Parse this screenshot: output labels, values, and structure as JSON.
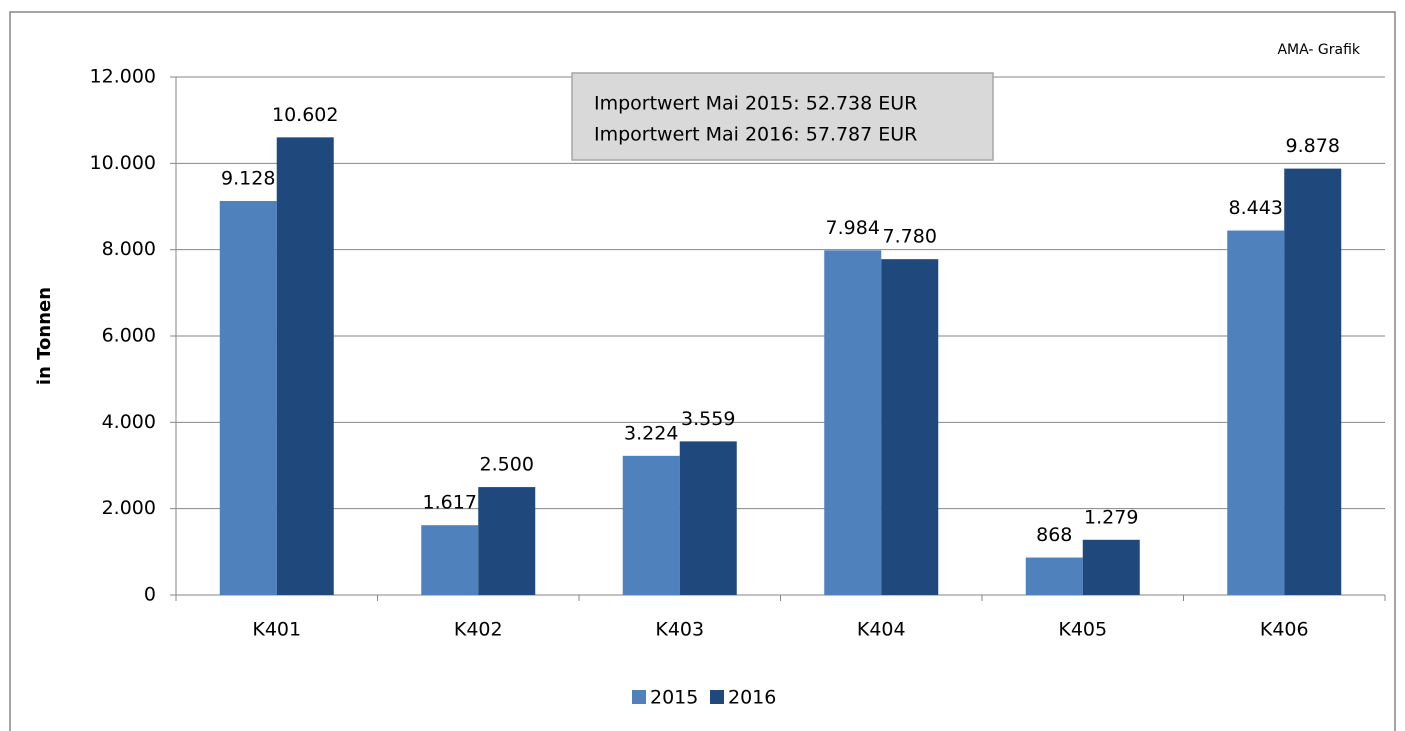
{
  "chart_data": {
    "type": "bar",
    "y_label": "in Tonnen",
    "source": "AMA- Grafik",
    "annotations": [
      "Importwert Mai 2015: 52.738 EUR",
      "Importwert Mai 2016: 57.787 EUR"
    ],
    "categories": [
      "K401",
      "K402",
      "K403",
      "K404",
      "K405",
      "K406"
    ],
    "series": [
      {
        "name": "2015",
        "color": "#4f81bd",
        "values": [
          9128,
          1617,
          3224,
          7984,
          868,
          8443
        ],
        "value_labels": [
          "9.128",
          "1.617",
          "3.224",
          "7.984",
          "868",
          "8.443"
        ]
      },
      {
        "name": "2016",
        "color": "#1f497d",
        "values": [
          10602,
          2500,
          3559,
          7780,
          1279,
          9878
        ],
        "value_labels": [
          "10.602",
          "2.500",
          "3.559",
          "7.780",
          "1.279",
          "9.878"
        ]
      }
    ],
    "ylim": [
      0,
      12000
    ],
    "yticks": [
      0,
      {
        "value": 2000,
        "label": "2.000"
      },
      {
        "value": 4000,
        "label": "4.000"
      },
      {
        "value": 6000,
        "label": "6.000"
      },
      {
        "value": 8000,
        "label": "8.000"
      },
      {
        "value": 10000,
        "label": "10.000"
      },
      {
        "value": 12000,
        "label": "12.000"
      }
    ],
    "grid": true,
    "legend": "bottom"
  }
}
